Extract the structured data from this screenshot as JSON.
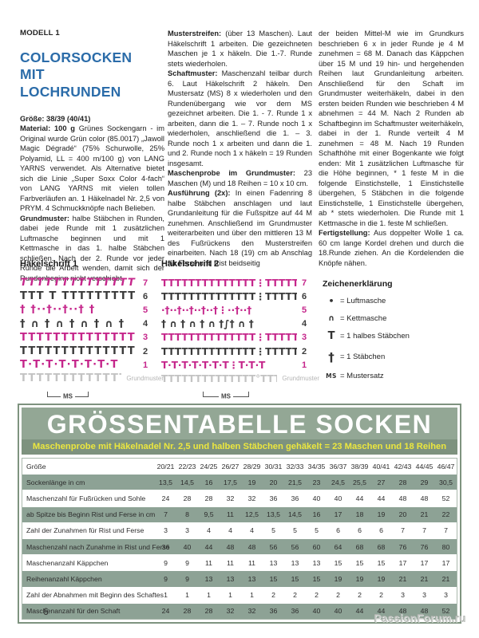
{
  "page": {
    "number": "6",
    "watermark": "PassionForum.ru"
  },
  "colors": {
    "heading_blue": "#2b6ca9",
    "symbol_pink": "#c5268b",
    "symbol_dark": "#3a3a3a",
    "symbol_gray": "#c3c3c3",
    "table_green": "#93a795",
    "table_row_green": "#8da295",
    "table_sub_green": "#7d927e",
    "table_yellow": "#ece73e"
  },
  "article": {
    "model": "MODELL 1",
    "title": "COLORSOCKEN MIT LOCHRUNDEN",
    "col1": [
      {
        "b": "Größe: 38/39 (40/41)",
        "t": ""
      },
      {
        "b": "Material: 100 g",
        "t": "Grünes Sockengarn - im Original wurde Grün color (85.0017) „Jawoll Magic Dégradé“ (75% Schurwolle, 25% Polyamid, LL = 400 m/100 g) von LANG YARNS verwendet. Als Alternative bietet sich die Linie „Super Soxx Color 4-fach“ von LANG YARNS mit vielen tollen Farbverläufen an. 1 Häkelnadel Nr. 2,5 von PRYM. 4 Schmuckknöpfe nach Belieben."
      },
      {
        "b": "Grundmuster:",
        "t": "halbe Stäbchen in Runden, dabei jede Runde mit 1 zusätzlichen Luftmasche beginnen und mit 1 Kettmasche in das 1. halbe Stäbchen schließen. Nach der 2. Runde vor jeder Runde die Arbeit wenden, damit sich der Rundenbeginn nicht verschiebt."
      }
    ],
    "col2": [
      {
        "b": "Musterstreifen:",
        "t": "(über 13 Maschen). Laut Häkelschrift 1 arbeiten. Die gezeichneten Maschen je 1 x häkeln. Die 1.-7. Runde stets wiederholen."
      },
      {
        "b": "Schaftmuster:",
        "t": "Maschenzahl teilbar durch 6. Laut Häkelschrift 2 häkeln. Den Mustersatz (MS) 8 x wiederholen und den Rundenübergang wie vor dem MS gezeichnet arbeiten. Die 1. - 7. Runde 1 x arbeiten, dann die 1. – 7. Runde noch 1 x wiederholen, anschließend die 1. – 3. Runde noch 1 x arbeiten und dann die 1. und 2. Runde noch 1 x häkeln = 19 Runden insgesamt."
      },
      {
        "b": "Maschenprobe im Grundmuster:",
        "t": "23 Maschen (M) und 18 Reihen = 10 x 10 cm."
      },
      {
        "b": "Ausführung (2x):",
        "t": "In einen Fadenring 8 halbe Stäbchen anschlagen und laut Grundanleitung für die Fußspitze auf 44 M zunehmen. Anschließend im Grundmuster weiterarbeiten und über den mittleren 13 M des Fußrückens den Musterstreifen einarbeiten. Nach 18 (19) cm ab Anschlag für Ferse und Rist beidseitig"
      }
    ],
    "col3": [
      {
        "b": "",
        "t": "der beiden Mittel-M wie im Grundkurs beschrieben 6 x in jeder Runde je 4 M zunehmen = 68 M. Danach das Käppchen über 15 M und 19 hin- und hergehenden Reihen laut Grundanleitung arbeiten. Anschließend für den Schaft im Grundmuster weiterhäkeln, dabei in den ersten beiden Runden wie beschrieben 4 M abnehmen = 44 M. Nach 2 Runden ab Schaftbeginn im Schaftmuster weiterhäkeln, dabei in der 1. Runde verteilt 4 M zunehmen = 48 M. Nach 19 Runden Schafthöhe mit einer Bogenkante wie folgt enden: Mit 1 zusätzlichen Luftmasche für die Höhe beginnen, * 1 feste M in die folgende Einstichstelle, 1 Einstichstelle übergehen, 5 Stäbchen in die folgende Einstichstelle, 1 Einstichstelle übergehen, ab * stets wiederholen. Die Runde mit 1 Kettmasche in die 1. feste M schließen."
      },
      {
        "b": "Fertigstellung:",
        "t": "Aus doppelter Wolle 1 ca. 60 cm lange Kordel drehen und durch die 18.Runde ziehen. An die Kordelenden die Knöpfe nähen."
      }
    ]
  },
  "charts": [
    {
      "title": "Häkelschrift 1",
      "ms_label": "MS",
      "rows": [
        {
          "sym": "TTTTTTTTTTTTTT",
          "num": "7",
          "color": "pink",
          "slant": true
        },
        {
          "sym": "TTT T TTTTTTTTT",
          "num": "6",
          "color": "dark"
        },
        {
          "sym": "† †··†··†··† †",
          "num": "5",
          "color": "pink"
        },
        {
          "sym": "† ∩ † ∩ † ∩ † ∩ †",
          "num": "4",
          "color": "dark"
        },
        {
          "sym": "TTTTTTTTTTTTTT",
          "num": "3",
          "color": "pink"
        },
        {
          "sym": "TTTTTTTTTTTTTT",
          "num": "2",
          "color": "dark"
        },
        {
          "sym": "T·T·T·T·T·T·T·T",
          "num": "1",
          "color": "pink"
        },
        {
          "sym": "TTTTTTTTTTTTTT",
          "num": "Grundmuster",
          "color": "gray",
          "grund": true
        }
      ]
    },
    {
      "title": "Häkelschrift 2",
      "ms_label": "MS",
      "rows": [
        {
          "sym": "TTTTTTTTTTTTTT⋮TTTTTT",
          "num": "7",
          "color": "pink"
        },
        {
          "sym": "TTTTTTTTTTTTTT⋮TTTTTT",
          "num": "6",
          "color": "dark"
        },
        {
          "sym": "·†··†··†··†··†⋮··†··†",
          "num": "5",
          "color": "pink"
        },
        {
          "sym": "† ∩ † ∩ † ∩ †∫† ∩ †",
          "num": "4",
          "color": "dark"
        },
        {
          "sym": "TTTTTTTTTTTTTT⋮TTTTTT",
          "num": "3",
          "color": "pink"
        },
        {
          "sym": "TTTTTTTTTTTTTT⋮TTTTTT",
          "num": "2",
          "color": "dark"
        },
        {
          "sym": "T·T·T·T·T·T·T⋮T·T·T",
          "num": "1",
          "color": "pink"
        },
        {
          "sym": "TTTTTTTTTTTTTT°TTTTTT",
          "num": "Grundmuster",
          "color": "gray",
          "grund": true
        }
      ]
    }
  ],
  "legend": {
    "title": "Zeichenerklärung",
    "items": [
      {
        "sym": "•",
        "style": "s-dot",
        "name": "chain-stitch-symbol",
        "text": "= Luftmasche"
      },
      {
        "sym": "∩",
        "style": "s-arc",
        "name": "slip-stitch-symbol",
        "text": "= Kettmasche"
      },
      {
        "sym": "T",
        "style": "s-halfT",
        "name": "half-double-crochet-symbol",
        "text": "= 1 halbes Stäbchen"
      },
      {
        "sym": "†",
        "style": "s-cross",
        "name": "double-crochet-symbol",
        "text": "= 1 Stäbchen"
      },
      {
        "sym": "MS",
        "style": "s-ms",
        "name": "pattern-repeat-symbol",
        "text": "= Mustersatz"
      }
    ]
  },
  "size_table": {
    "title": "GRÖSSENTABELLE SOCKEN",
    "subtitle": "Maschenprobe mit Häkelnadel Nr. 2,5 und halben Stäbchen gehäkelt = 23 Maschen und 18 Reihen",
    "columns": [
      "Größe",
      "20/21",
      "22/23",
      "24/25",
      "26/27",
      "28/29",
      "30/31",
      "32/33",
      "34/35",
      "36/37",
      "38/39",
      "40/41",
      "42/43",
      "44/45",
      "46/47"
    ],
    "rows": [
      {
        "label": "Sockenlänge in cm",
        "values": [
          "13,5",
          "14,5",
          "16",
          "17,5",
          "19",
          "20",
          "21,5",
          "23",
          "24,5",
          "25,5",
          "27",
          "28",
          "29",
          "30,5"
        ]
      },
      {
        "label": "Maschenzahl für Fußrücken und Sohle",
        "values": [
          "24",
          "28",
          "28",
          "32",
          "32",
          "36",
          "36",
          "40",
          "40",
          "44",
          "44",
          "48",
          "48",
          "52"
        ]
      },
      {
        "label": "ab Spitze bis Beginn Rist und Ferse in cm",
        "values": [
          "7",
          "8",
          "9,5",
          "11",
          "12,5",
          "13,5",
          "14,5",
          "16",
          "17",
          "18",
          "19",
          "20",
          "21",
          "22"
        ]
      },
      {
        "label": "Zahl der Zunahmen für Rist und Ferse",
        "values": [
          "3",
          "3",
          "4",
          "4",
          "4",
          "5",
          "5",
          "5",
          "6",
          "6",
          "6",
          "7",
          "7",
          "7"
        ]
      },
      {
        "label": "Maschenzahl nach Zunahme in Rist und Ferse",
        "values": [
          "36",
          "40",
          "44",
          "48",
          "48",
          "56",
          "56",
          "60",
          "64",
          "68",
          "68",
          "76",
          "76",
          "80"
        ]
      },
      {
        "label": "Maschenanzahl Käppchen",
        "values": [
          "9",
          "9",
          "11",
          "11",
          "11",
          "13",
          "13",
          "13",
          "15",
          "15",
          "15",
          "17",
          "17",
          "17"
        ]
      },
      {
        "label": "Reihenanzahl Käppchen",
        "values": [
          "9",
          "9",
          "13",
          "13",
          "13",
          "15",
          "15",
          "15",
          "19",
          "19",
          "19",
          "21",
          "21",
          "21"
        ]
      },
      {
        "label": "Zahl der Abnahmen mit Beginn des Schaftes",
        "values": [
          "1",
          "1",
          "1",
          "1",
          "1",
          "2",
          "2",
          "2",
          "2",
          "2",
          "2",
          "3",
          "3",
          "3"
        ]
      },
      {
        "label": "Maschenanzahl für den Schaft",
        "values": [
          "24",
          "28",
          "28",
          "32",
          "32",
          "36",
          "36",
          "40",
          "40",
          "44",
          "44",
          "48",
          "48",
          "52"
        ]
      }
    ]
  }
}
